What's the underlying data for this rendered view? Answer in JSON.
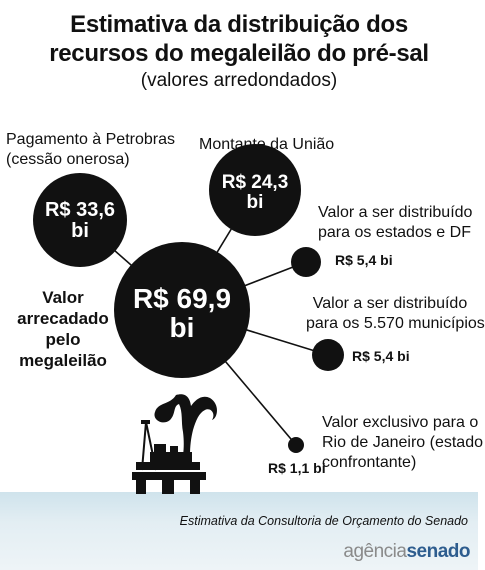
{
  "title_line1": "Estimativa da distribuição dos",
  "title_line2": "recursos do megaleilão do pré-sal",
  "subtitle": "(valores arredondados)",
  "center": {
    "value_line1": "R$ 69,9",
    "value_line2": "bi",
    "label_line1": "Valor",
    "label_line2": "arrecadado",
    "label_line3": "pelo",
    "label_line4": "megaleilão"
  },
  "petrobras": {
    "label_line1": "Pagamento à Petrobras",
    "label_line2": "(cessão onerosa)",
    "value_line1": "R$ 33,6",
    "value_line2": "bi"
  },
  "uniao": {
    "label": "Montante da União",
    "value_line1": "R$ 24,3",
    "value_line2": "bi"
  },
  "estados": {
    "label_line1": "Valor a ser distribuído",
    "label_line2": "para os estados e DF",
    "value": "R$ 5,4 bi"
  },
  "municipios": {
    "label_line1": "Valor a ser distribuído",
    "label_line2": "para os 5.570 municípios",
    "value": "R$ 5,4 bi"
  },
  "rio": {
    "label_line1": "Valor exclusivo para o",
    "label_line2": "Rio de Janeiro (estado",
    "label_line3": "confrontante)",
    "value": "R$ 1,1 bi"
  },
  "source": "Estimativa da Consultoria de Orçamento do Senado",
  "logo": {
    "part1": "agência",
    "part2": "senado"
  },
  "colors": {
    "bubble": "#111111",
    "text": "#111111",
    "sea": "#d9e8ef",
    "logo_blue": "#2e5d8f"
  }
}
